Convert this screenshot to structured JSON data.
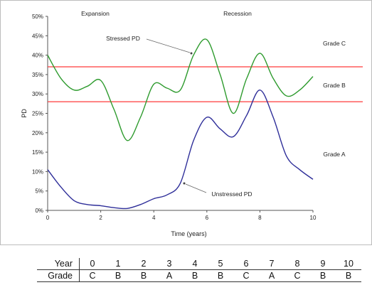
{
  "chart_data": {
    "type": "line",
    "xlabel": "Time (years)",
    "ylabel": "PD",
    "xlim": [
      0,
      10
    ],
    "ylim": [
      0,
      50
    ],
    "x_ticks": [
      0,
      2,
      4,
      6,
      8,
      10
    ],
    "y_ticks": [
      "0%",
      "5%",
      "10%",
      "15%",
      "20%",
      "25%",
      "30%",
      "35%",
      "40%",
      "45%",
      "50%"
    ],
    "phase_labels": [
      "Expansion",
      "Recession"
    ],
    "grade_labels": [
      "Grade C",
      "Grade B",
      "Grade A"
    ],
    "thresholds": [
      37,
      28
    ],
    "threshold_color": "#ff3b3b",
    "series": [
      {
        "name": "Stressed PD",
        "color": "#2e9b2e",
        "x": [
          0,
          0.5,
          1,
          1.5,
          2,
          2.5,
          3,
          3.5,
          4,
          4.5,
          5,
          5.5,
          6,
          6.5,
          7,
          7.5,
          8,
          8.5,
          9,
          9.5,
          10
        ],
        "values": [
          40,
          34,
          31,
          32,
          33.5,
          26,
          18,
          24,
          32.5,
          31.5,
          31,
          40,
          44,
          35,
          25,
          34,
          40.5,
          34,
          29.5,
          31,
          34.5
        ]
      },
      {
        "name": "Unstressed PD",
        "color": "#2e2e99",
        "x": [
          0,
          0.5,
          1,
          1.5,
          2,
          2.5,
          3,
          3.5,
          4,
          4.5,
          5,
          5.5,
          6,
          6.5,
          7,
          7.5,
          8,
          8.5,
          9,
          9.5,
          10
        ],
        "values": [
          10.5,
          6,
          2.5,
          1.5,
          1.2,
          0.7,
          0.5,
          1.5,
          3,
          4,
          7,
          18,
          24,
          21,
          19,
          24.5,
          31,
          24,
          14,
          10.5,
          8
        ]
      }
    ]
  },
  "grade_table": {
    "year_label": "Year",
    "grade_label": "Grade",
    "years": [
      "0",
      "1",
      "2",
      "3",
      "4",
      "5",
      "6",
      "7",
      "8",
      "9",
      "10"
    ],
    "grades": [
      "C",
      "B",
      "B",
      "A",
      "B",
      "B",
      "C",
      "A",
      "C",
      "B",
      "B"
    ]
  }
}
